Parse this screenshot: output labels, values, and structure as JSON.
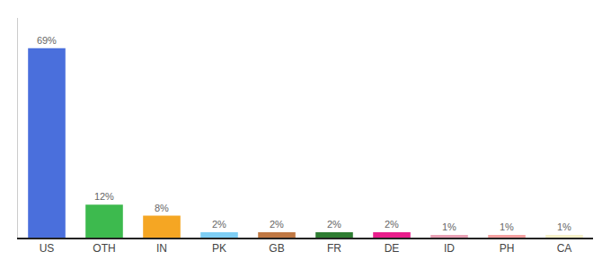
{
  "chart_data": {
    "type": "bar",
    "categories": [
      "US",
      "OTH",
      "IN",
      "PK",
      "GB",
      "FR",
      "DE",
      "ID",
      "PH",
      "CA"
    ],
    "values": [
      69,
      12,
      8,
      2,
      2,
      2,
      2,
      1,
      1,
      1
    ],
    "value_labels": [
      "69%",
      "12%",
      "8%",
      "2%",
      "2%",
      "2%",
      "2%",
      "1%",
      "1%",
      "1%"
    ],
    "data_labels": true,
    "colors": [
      "#4a6fdc",
      "#3dba4e",
      "#f5a623",
      "#7ecef4",
      "#c07843",
      "#2e7d32",
      "#e91e8c",
      "#e8a0b4",
      "#f4a0a0",
      "#f5f0c8"
    ],
    "ylim": [
      0,
      80
    ],
    "grid": false,
    "tick_labels": "x"
  }
}
